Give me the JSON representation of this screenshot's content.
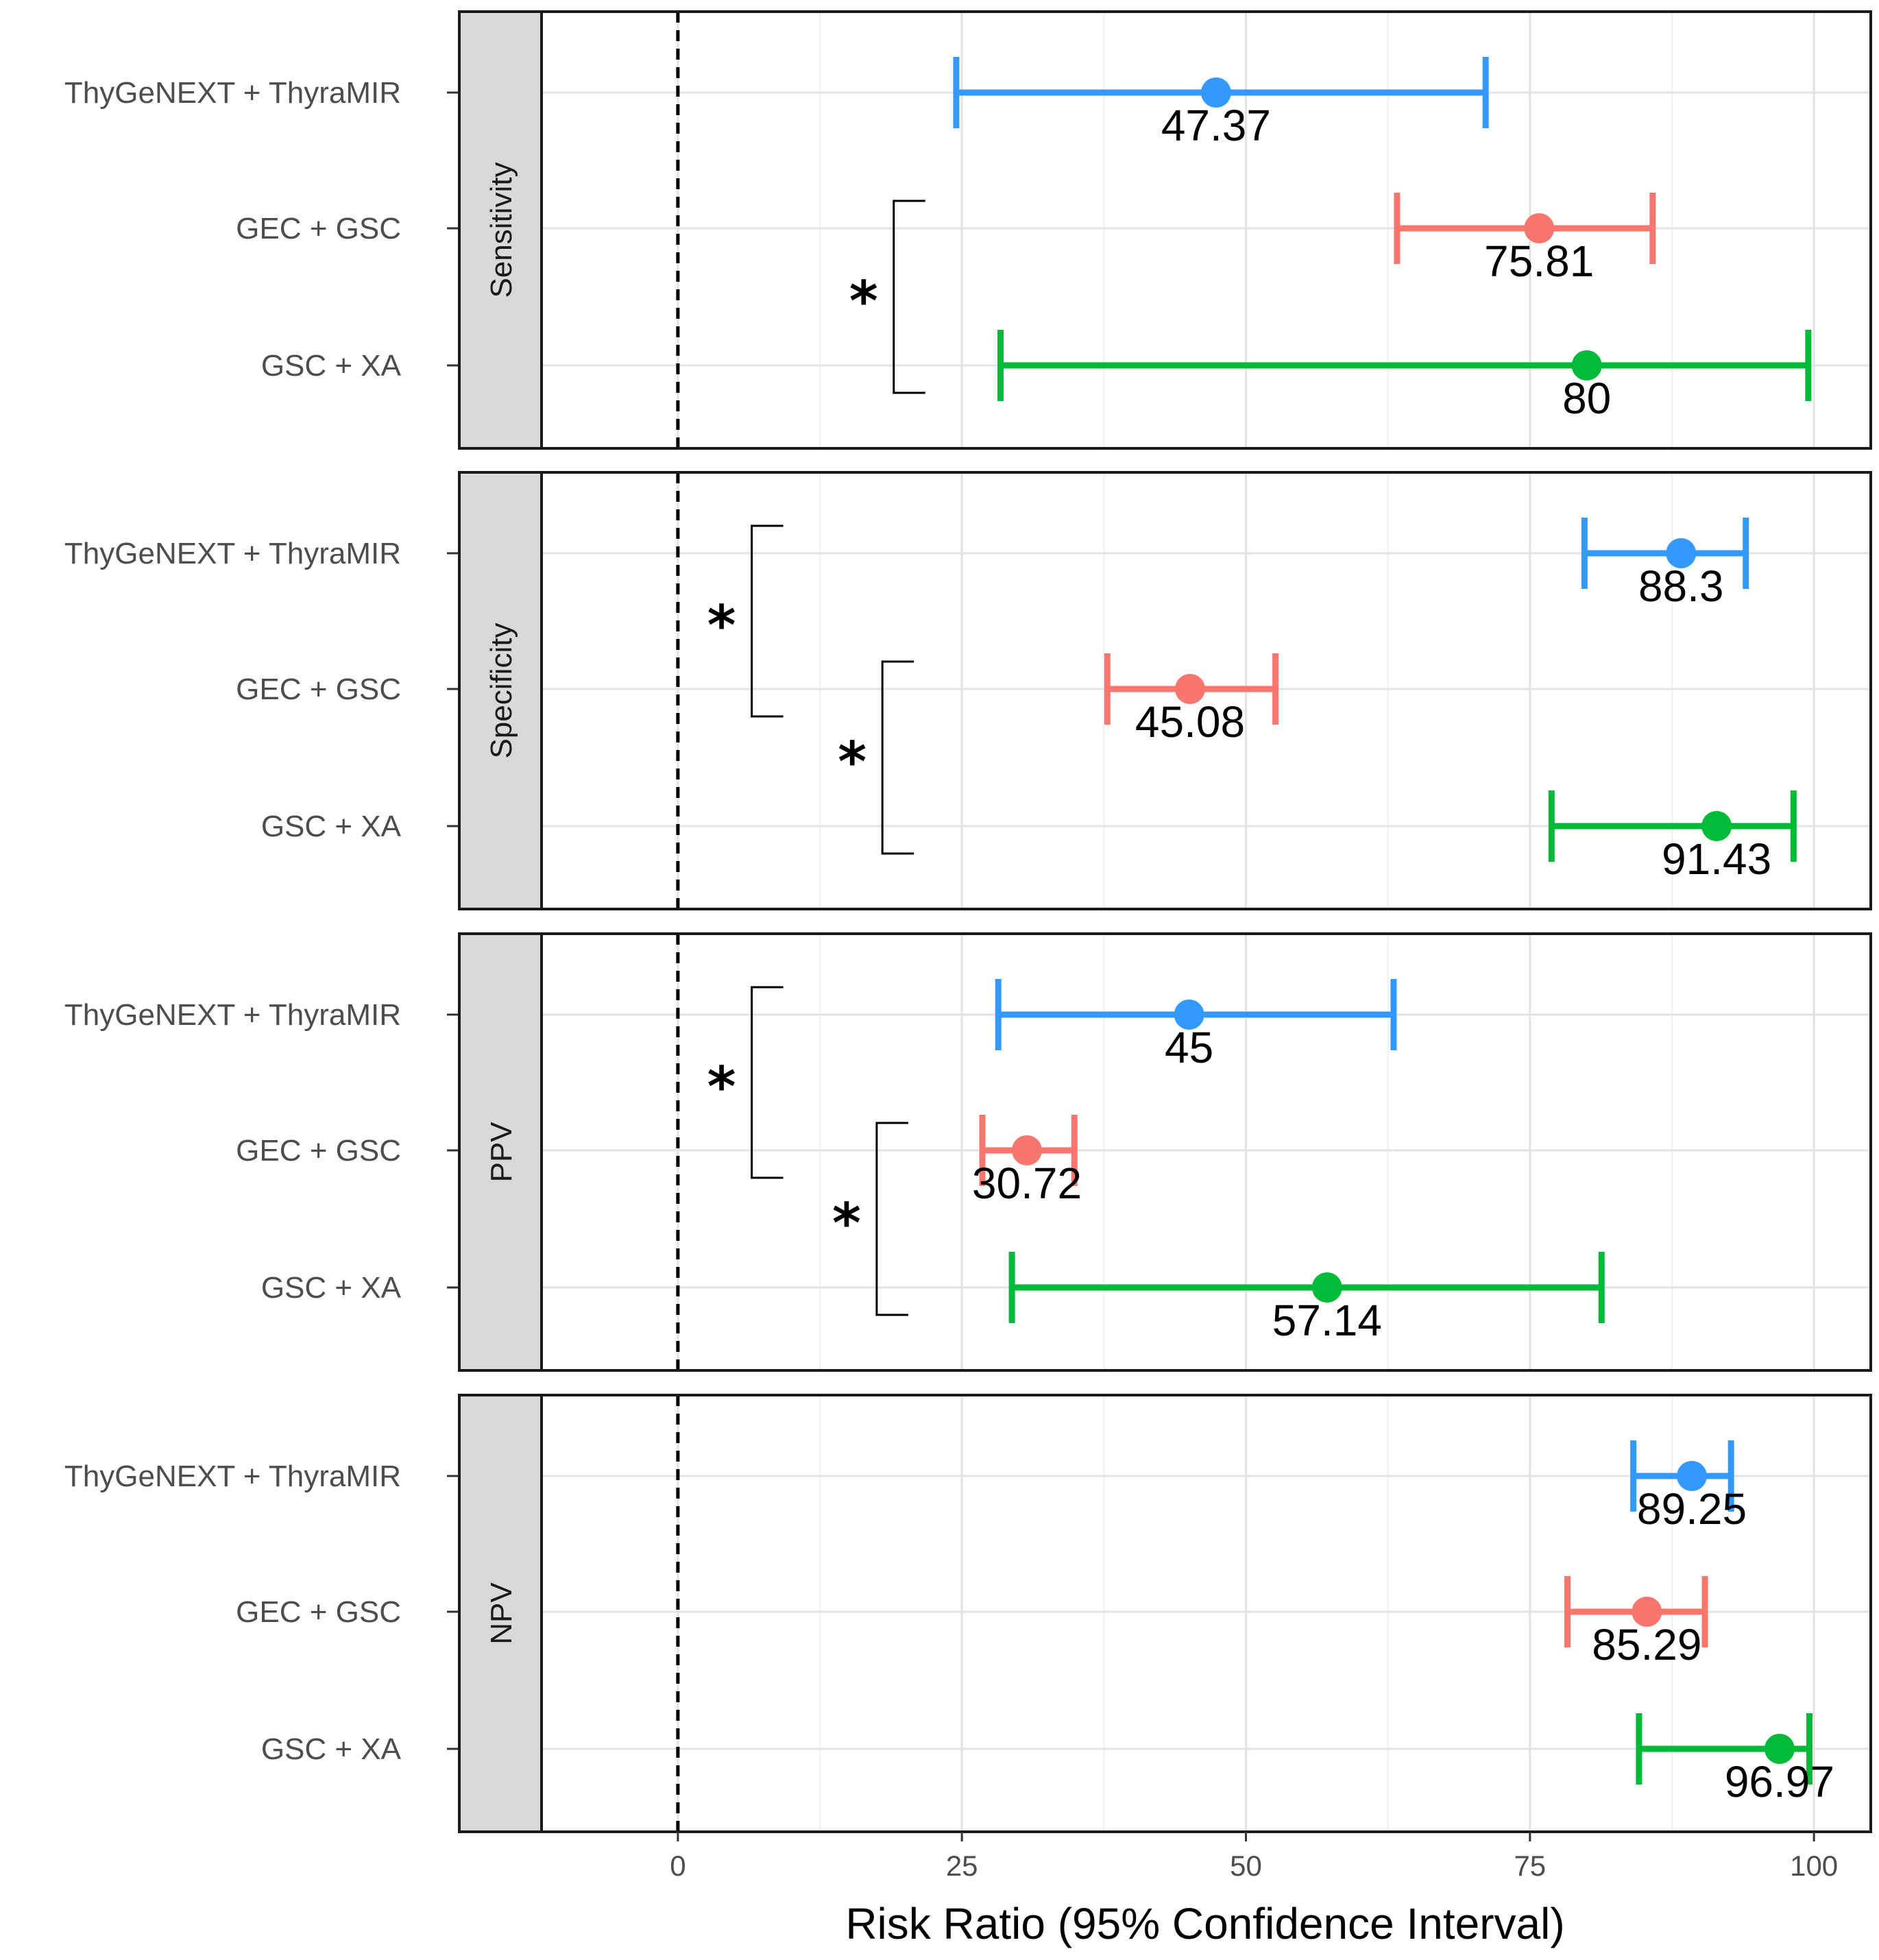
{
  "chart_data": {
    "type": "forest",
    "xlabel": "Risk Ratio (95% Confidence Interval)",
    "xlim": [
      -12,
      105
    ],
    "xticks": [
      0,
      25,
      50,
      75,
      100
    ],
    "xtick_labels": [
      "0",
      "25",
      "50",
      "75",
      "100"
    ],
    "reference_line": 0,
    "grid": true,
    "categories": [
      "ThyGeNEXT + ThyraMIR",
      "GEC + GSC",
      "GSC + XA"
    ],
    "colors": {
      "ThyGeNEXT + ThyraMIR": "#3399ff",
      "GEC + GSC": "#f8766d",
      "GSC + XA": "#00ba38"
    },
    "panels": [
      {
        "name": "Sensitivity",
        "rows": [
          {
            "label": "ThyGeNEXT + ThyraMIR",
            "value": 47.37,
            "lower": 24.5,
            "upper": 71.1,
            "value_label": "47.37"
          },
          {
            "label": "GEC + GSC",
            "value": 75.81,
            "lower": 63.3,
            "upper": 85.8,
            "value_label": "75.81"
          },
          {
            "label": "GSC + XA",
            "value": 80,
            "lower": 28.4,
            "upper": 99.5,
            "value_label": "80"
          }
        ],
        "significance": [
          {
            "from": 1,
            "to": 2,
            "marker": "*",
            "x": 19
          }
        ]
      },
      {
        "name": "Specificity",
        "rows": [
          {
            "label": "ThyGeNEXT + ThyraMIR",
            "value": 88.3,
            "lower": 79.8,
            "upper": 94.0,
            "value_label": "88.3"
          },
          {
            "label": "GEC + GSC",
            "value": 45.08,
            "lower": 37.8,
            "upper": 52.6,
            "value_label": "45.08"
          },
          {
            "label": "GSC + XA",
            "value": 91.43,
            "lower": 76.9,
            "upper": 98.2,
            "value_label": "91.43"
          }
        ],
        "significance": [
          {
            "from": 0,
            "to": 1,
            "marker": "*",
            "x": 6.5
          },
          {
            "from": 1,
            "to": 2,
            "marker": "*",
            "x": 18
          }
        ]
      },
      {
        "name": "PPV",
        "rows": [
          {
            "label": "ThyGeNEXT + ThyraMIR",
            "value": 45,
            "lower": 28.2,
            "upper": 63.0,
            "value_label": "45"
          },
          {
            "label": "GEC + GSC",
            "value": 30.72,
            "lower": 26.8,
            "upper": 34.9,
            "value_label": "30.72"
          },
          {
            "label": "GSC + XA",
            "value": 57.14,
            "lower": 29.4,
            "upper": 81.3,
            "value_label": "57.14"
          }
        ],
        "significance": [
          {
            "from": 0,
            "to": 1,
            "marker": "*",
            "x": 6.5
          },
          {
            "from": 1,
            "to": 2,
            "marker": "*",
            "x": 17.5
          }
        ]
      },
      {
        "name": "NPV",
        "rows": [
          {
            "label": "ThyGeNEXT + ThyraMIR",
            "value": 89.25,
            "lower": 84.1,
            "upper": 92.7,
            "value_label": "89.25"
          },
          {
            "label": "GEC + GSC",
            "value": 85.29,
            "lower": 78.3,
            "upper": 90.4,
            "value_label": "85.29"
          },
          {
            "label": "GSC + XA",
            "value": 96.97,
            "lower": 84.6,
            "upper": 99.6,
            "value_label": "96.97"
          }
        ],
        "significance": []
      }
    ]
  }
}
